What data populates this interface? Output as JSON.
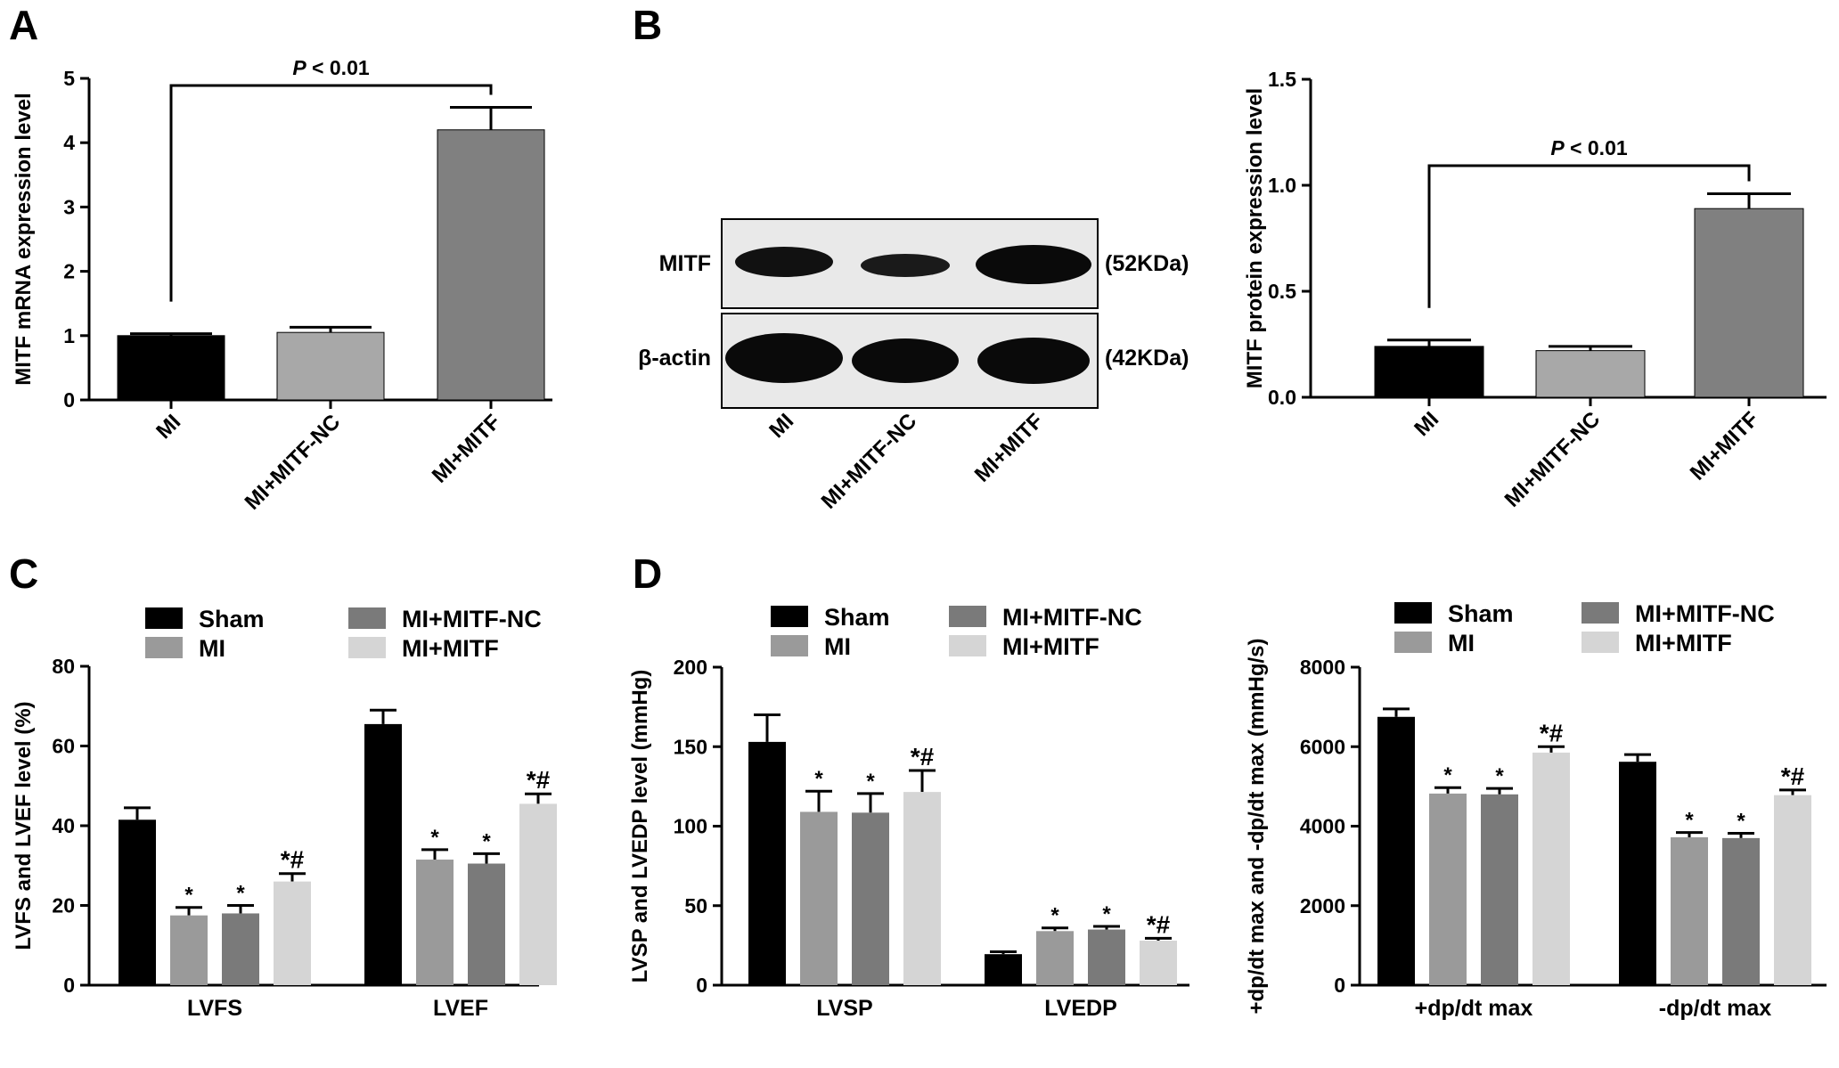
{
  "colors": {
    "axis": "#000000",
    "Sham": "#000000",
    "MI": "#9a9a9a",
    "MI+MITF-NC": "#7a7a7a",
    "MI+MITF": "#d5d5d5",
    "panelA_bars": [
      "#000000",
      "#a8a8a8",
      "#808080"
    ],
    "panelB_bars": [
      "#000000",
      "#a8a8a8",
      "#808080"
    ]
  },
  "panel_letters": [
    "A",
    "B",
    "C",
    "D"
  ],
  "significance": {
    "p_prefix": "P",
    "p_rest": " < 0.01"
  },
  "blot": {
    "rows": [
      {
        "label": "MITF",
        "size": "(52KDa)"
      },
      {
        "label": "β-actin",
        "size": "(42KDa)"
      }
    ],
    "lanes": [
      "MI",
      "MI+MITF-NC",
      "MI+MITF"
    ]
  },
  "chart_data": [
    {
      "id": "A",
      "type": "bar",
      "ylabel": "MITF mRNA expression level",
      "categories": [
        "MI",
        "MI+MITF-NC",
        "MI+MITF"
      ],
      "values": [
        1.0,
        1.05,
        4.2
      ],
      "errors": [
        0.03,
        0.08,
        0.35
      ],
      "ylim": [
        0,
        5
      ],
      "yticks": [
        0,
        1,
        2,
        3,
        4,
        5
      ],
      "ytick_labels": [
        "0",
        "1",
        "2",
        "3",
        "4",
        "5"
      ],
      "annotation": "P < 0.01"
    },
    {
      "id": "B",
      "type": "bar",
      "ylabel": "MITF protein expression level",
      "categories": [
        "MI",
        "MI+MITF-NC",
        "MI+MITF"
      ],
      "values": [
        0.24,
        0.22,
        0.89
      ],
      "errors": [
        0.03,
        0.02,
        0.07
      ],
      "ylim": [
        0,
        1.5
      ],
      "yticks": [
        0,
        0.5,
        1.0,
        1.5
      ],
      "ytick_labels": [
        "0.0",
        "0.5",
        "1.0",
        "1.5"
      ],
      "annotation": "P < 0.01"
    },
    {
      "id": "C",
      "type": "bar",
      "ylabel": "LVFS and LVEF level (%)",
      "categories": [
        "LVFS",
        "LVEF"
      ],
      "series": [
        {
          "name": "Sham",
          "values": [
            41.5,
            65.5
          ],
          "errors": [
            3.0,
            3.5
          ],
          "marks": [
            "",
            ""
          ]
        },
        {
          "name": "MI",
          "values": [
            17.5,
            31.5
          ],
          "errors": [
            2.0,
            2.5
          ],
          "marks": [
            "*",
            "*"
          ]
        },
        {
          "name": "MI+MITF-NC",
          "values": [
            18.0,
            30.5
          ],
          "errors": [
            2.0,
            2.5
          ],
          "marks": [
            "*",
            "*"
          ]
        },
        {
          "name": "MI+MITF",
          "values": [
            26.0,
            45.5
          ],
          "errors": [
            2.0,
            2.5
          ],
          "marks": [
            "*#",
            "*#"
          ]
        }
      ],
      "ylim": [
        0,
        80
      ],
      "yticks": [
        0,
        20,
        40,
        60,
        80
      ],
      "ytick_labels": [
        "0",
        "20",
        "40",
        "60",
        "80"
      ],
      "legend": [
        "Sham",
        "MI",
        "MI+MITF-NC",
        "MI+MITF"
      ]
    },
    {
      "id": "D1",
      "type": "bar",
      "ylabel": "LVSP and LVEDP level (mmHg)",
      "categories": [
        "LVSP",
        "LVEDP"
      ],
      "series": [
        {
          "name": "Sham",
          "values": [
            153,
            19.5
          ],
          "errors": [
            17,
            1.5
          ],
          "marks": [
            "",
            ""
          ]
        },
        {
          "name": "MI",
          "values": [
            109,
            34
          ],
          "errors": [
            13,
            2
          ],
          "marks": [
            "*",
            "*"
          ]
        },
        {
          "name": "MI+MITF-NC",
          "values": [
            108.5,
            35
          ],
          "errors": [
            12,
            2
          ],
          "marks": [
            "*",
            "*"
          ]
        },
        {
          "name": "MI+MITF",
          "values": [
            121.5,
            28
          ],
          "errors": [
            13.5,
            1.5
          ],
          "marks": [
            "*#",
            "*#"
          ]
        }
      ],
      "ylim": [
        0,
        200
      ],
      "yticks": [
        0,
        50,
        100,
        150,
        200
      ],
      "ytick_labels": [
        "0",
        "50",
        "100",
        "150",
        "200"
      ],
      "legend": [
        "Sham",
        "MI",
        "MI+MITF-NC",
        "MI+MITF"
      ]
    },
    {
      "id": "D2",
      "type": "bar",
      "ylabel": "+dp/dt max and -dp/dt max (mmHg/s)",
      "categories": [
        "+dp/dt max",
        "-dp/dt max"
      ],
      "series": [
        {
          "name": "Sham",
          "values": [
            6750,
            5620
          ],
          "errors": [
            200,
            180
          ],
          "marks": [
            "",
            ""
          ]
        },
        {
          "name": "MI",
          "values": [
            4820,
            3720
          ],
          "errors": [
            150,
            120
          ],
          "marks": [
            "*",
            "*"
          ]
        },
        {
          "name": "MI+MITF-NC",
          "values": [
            4800,
            3700
          ],
          "errors": [
            150,
            120
          ],
          "marks": [
            "*",
            "*"
          ]
        },
        {
          "name": "MI+MITF",
          "values": [
            5850,
            4780
          ],
          "errors": [
            150,
            130
          ],
          "marks": [
            "*#",
            "*#"
          ]
        }
      ],
      "ylim": [
        0,
        8000
      ],
      "yticks": [
        0,
        2000,
        4000,
        6000,
        8000
      ],
      "ytick_labels": [
        "0",
        "2000",
        "4000",
        "6000",
        "8000"
      ],
      "legend": [
        "Sham",
        "MI",
        "MI+MITF-NC",
        "MI+MITF"
      ]
    }
  ]
}
